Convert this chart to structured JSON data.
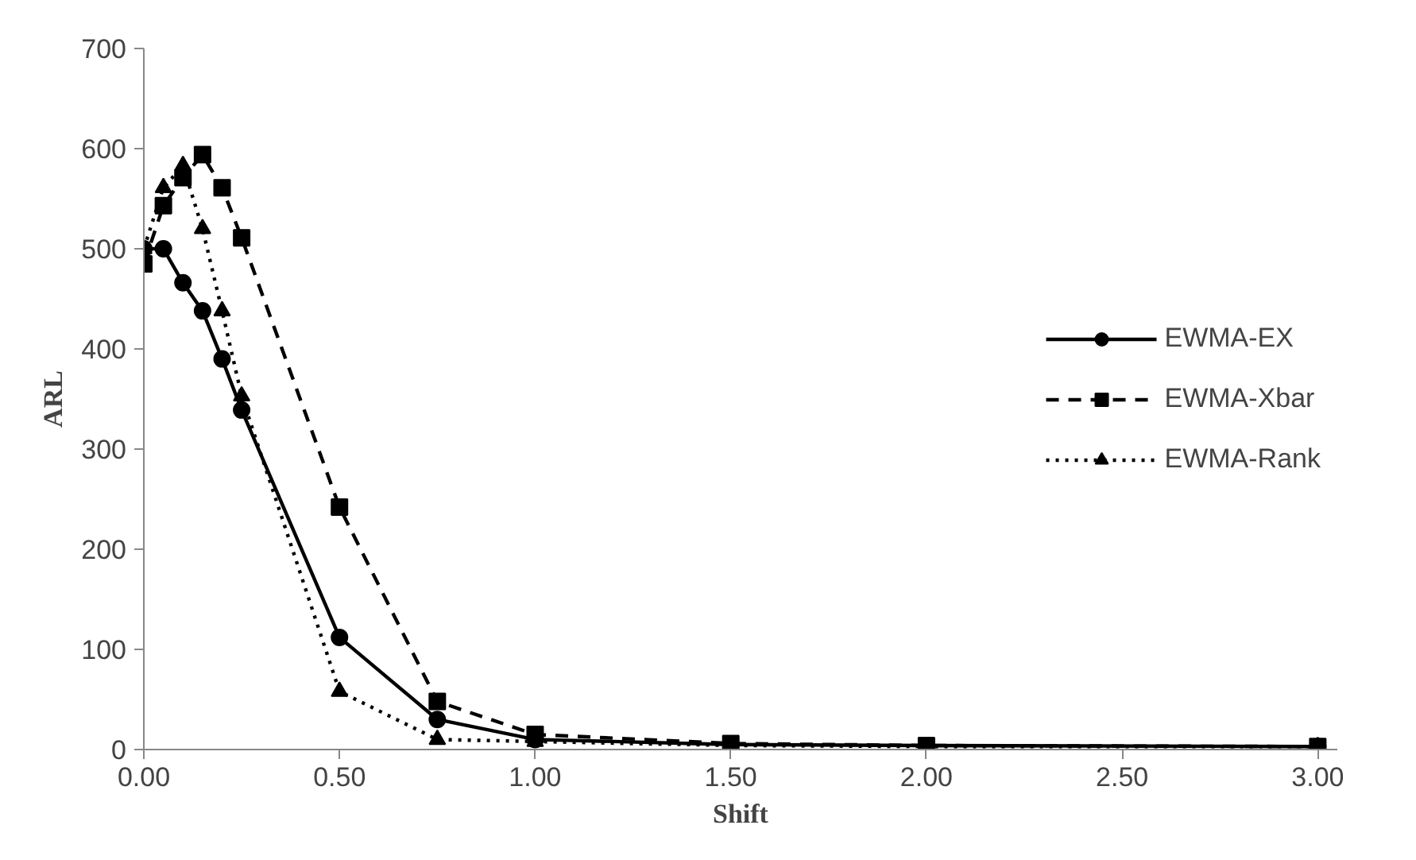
{
  "chart_data": {
    "type": "line",
    "xlabel": "Shift",
    "ylabel": "ARL",
    "x": [
      0,
      0.05,
      0.1,
      0.15,
      0.2,
      0.25,
      0.5,
      0.75,
      1.0,
      1.5,
      2.0,
      3.0
    ],
    "series": [
      {
        "name": "EWMA-EX",
        "color": "#000000",
        "marker": "circle",
        "line_style": "solid",
        "values": [
          500,
          500,
          466,
          438,
          390,
          339,
          112,
          30,
          10,
          5,
          4,
          3
        ]
      },
      {
        "name": "EWMA-Xbar",
        "color": "#000000",
        "marker": "square",
        "line_style": "dashed",
        "values": [
          485,
          543,
          571,
          594,
          561,
          511,
          242,
          48,
          15,
          6,
          4,
          3
        ]
      },
      {
        "name": "EWMA-Rank",
        "color": "#000000",
        "marker": "triangle",
        "line_style": "dotted",
        "values": [
          500,
          561,
          583,
          520,
          438,
          353,
          58,
          10,
          8,
          4,
          3,
          3
        ]
      }
    ],
    "xlim": [
      0,
      3.05
    ],
    "ylim": [
      0,
      700
    ],
    "xticks": [
      {
        "value": 0,
        "label": "0.00"
      },
      {
        "value": 0.5,
        "label": "0.50"
      },
      {
        "value": 1.0,
        "label": "1.00"
      },
      {
        "value": 1.5,
        "label": "1.50"
      },
      {
        "value": 2.0,
        "label": "2.00"
      },
      {
        "value": 2.5,
        "label": "2.50"
      },
      {
        "value": 3.0,
        "label": "3.00"
      }
    ],
    "yticks": [
      0,
      100,
      200,
      300,
      400,
      500,
      600,
      700
    ],
    "grid": false,
    "legend": "right"
  }
}
